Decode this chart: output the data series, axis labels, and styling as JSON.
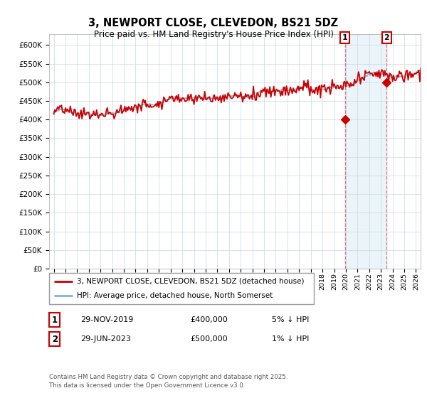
{
  "title": "3, NEWPORT CLOSE, CLEVEDON, BS21 5DZ",
  "subtitle": "Price paid vs. HM Land Registry's House Price Index (HPI)",
  "footnote": "Contains HM Land Registry data © Crown copyright and database right 2025.\nThis data is licensed under the Open Government Licence v3.0.",
  "ylim": [
    0,
    630000
  ],
  "yticks": [
    0,
    50000,
    100000,
    150000,
    200000,
    250000,
    300000,
    350000,
    400000,
    450000,
    500000,
    550000,
    600000
  ],
  "hpi_color": "#7ab8d9",
  "price_color": "#cc0000",
  "vline_color": "#e06060",
  "marker1_x": 2019.916,
  "marker1_y": 400000,
  "marker2_x": 2023.496,
  "marker2_y": 500000,
  "legend_line1": "3, NEWPORT CLOSE, CLEVEDON, BS21 5DZ (detached house)",
  "legend_line2": "HPI: Average price, detached house, North Somerset",
  "annotation1_num": "1",
  "annotation1_date": "29-NOV-2019",
  "annotation1_price": "£400,000",
  "annotation1_hpi": "5% ↓ HPI",
  "annotation2_num": "2",
  "annotation2_date": "29-JUN-2023",
  "annotation2_price": "£500,000",
  "annotation2_hpi": "1% ↓ HPI",
  "xmin": 1994.6,
  "xmax": 2026.4
}
